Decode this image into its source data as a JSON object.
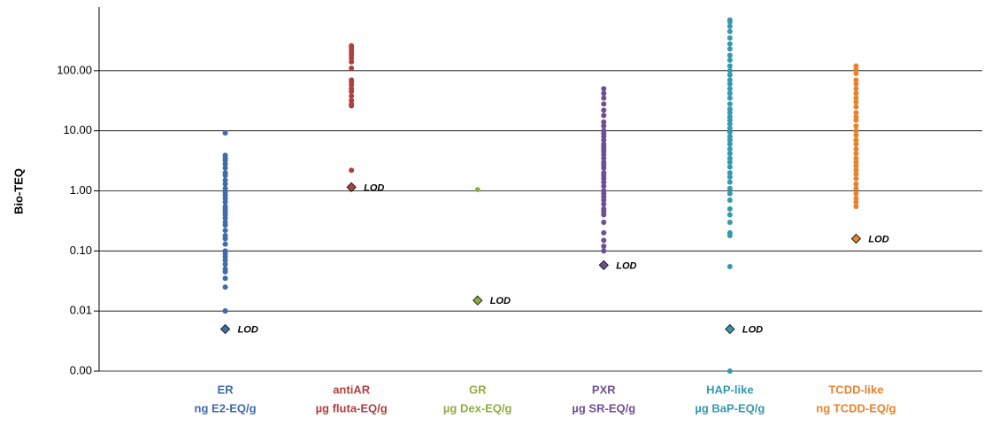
{
  "chart_data": {
    "type": "strip",
    "y_label": "Bio-TEQ",
    "log_scale": true,
    "grid": true,
    "ylim": [
      0.001,
      1000
    ],
    "yticks": [
      {
        "value": 0.001,
        "label": "0.00"
      },
      {
        "value": 0.01,
        "label": "0.01"
      },
      {
        "value": 0.1,
        "label": "0.10"
      },
      {
        "value": 1,
        "label": "1.00"
      },
      {
        "value": 10,
        "label": "10.00"
      },
      {
        "value": 100,
        "label": "100.00"
      }
    ],
    "lod_label": "LOD",
    "series": [
      {
        "name": "ER",
        "unit": "ng E2-EQ/g",
        "color": "#3f6ba8",
        "lod": 0.005,
        "values": [
          9.2,
          3.9,
          3.5,
          3.2,
          2.8,
          2.4,
          2,
          1.8,
          1.5,
          1.3,
          1.1,
          0.95,
          0.85,
          0.75,
          0.65,
          0.55,
          0.5,
          0.45,
          0.4,
          0.35,
          0.3,
          0.27,
          0.22,
          0.18,
          0.16,
          0.13,
          0.1,
          0.09,
          0.08,
          0.07,
          0.06,
          0.05,
          0.045,
          0.035,
          0.025,
          0.01,
          0.01
        ]
      },
      {
        "name": "antiAR",
        "unit": "µg fluta-EQ/g",
        "color": "#b0403f",
        "lod": 1.15,
        "values": [
          260,
          240,
          220,
          200,
          180,
          160,
          140,
          110,
          70,
          65,
          58,
          50,
          45,
          38,
          32,
          28,
          26,
          2.2
        ]
      },
      {
        "name": "GR",
        "unit": "µg Dex-EQ/g",
        "color": "#8fad3e",
        "lod": 0.015,
        "values": [
          1.05
        ]
      },
      {
        "name": "PXR",
        "unit": "µg SR-EQ/g",
        "color": "#6f4f93",
        "lod": 0.058,
        "values": [
          50,
          42,
          35,
          28,
          22,
          18,
          14,
          12,
          10,
          9,
          8,
          7,
          6,
          5.5,
          5,
          4.5,
          4,
          3.5,
          3,
          2.7,
          2.4,
          2,
          1.8,
          1.6,
          1.4,
          1.2,
          1,
          0.9,
          0.8,
          0.7,
          0.6,
          0.5,
          0.45,
          0.4,
          0.3,
          0.2,
          0.15,
          0.12,
          0.1
        ]
      },
      {
        "name": "HAP-like",
        "unit": "µg BaP-EQ/g",
        "color": "#3399ae",
        "lod": 0.005,
        "values": [
          700,
          650,
          550,
          450,
          350,
          280,
          230,
          180,
          150,
          120,
          100,
          85,
          70,
          60,
          50,
          42,
          35,
          28,
          23,
          20,
          17,
          15,
          13,
          11,
          9.5,
          8,
          7,
          6,
          5,
          4.2,
          3.5,
          3,
          2.5,
          2,
          1.7,
          1.4,
          1.1,
          0.9,
          0.7,
          0.5,
          0.4,
          0.3,
          0.2,
          0.18,
          0.055,
          0.001
        ]
      },
      {
        "name": "TCDD-like",
        "unit": "ng TCDD-EQ/g",
        "color": "#e7832b",
        "lod": 0.16,
        "values": [
          120,
          105,
          90,
          70,
          60,
          50,
          42,
          35,
          30,
          25,
          20,
          17,
          15,
          12,
          10,
          8.5,
          7,
          6,
          5,
          4.2,
          3.5,
          3,
          2.6,
          2.2,
          1.9,
          1.6,
          1.3,
          1.1,
          0.9,
          0.75,
          0.65,
          0.55
        ]
      }
    ]
  }
}
